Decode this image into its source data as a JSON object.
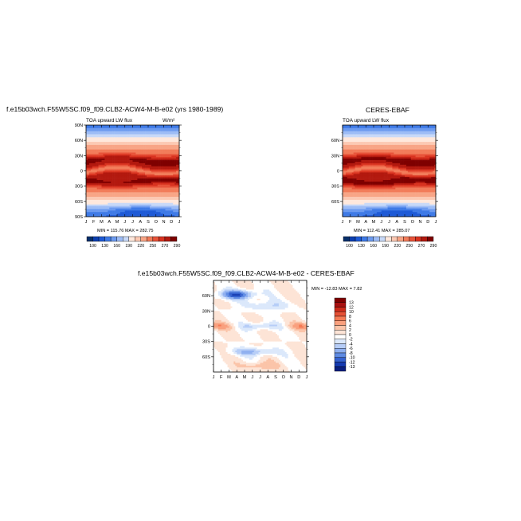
{
  "figure": {
    "case_title": "f.e15b03wch.F55W5SC.f09_f09.CLB2-ACW4-M-B-e02 (yrs 1980-1989)",
    "obs_title": "CERES-EBAF",
    "diff_title": "f.e15b03wch.F55W5SC.f09_f09.CLB2-ACW4-M-B-e02 - CERES-EBAF"
  },
  "chart_data": [
    {
      "type": "heatmap",
      "name": "model",
      "title": "TOA upward LW flux",
      "units": "W/m²",
      "stats": "MIN = 115.76  MAX = 282.75",
      "x_ticks": [
        "J",
        "F",
        "M",
        "A",
        "M",
        "J",
        "J",
        "A",
        "S",
        "O",
        "N",
        "D",
        "J"
      ],
      "y_ticks": [
        "90N",
        "60N",
        "30N",
        "0",
        "30S",
        "60S",
        "90S"
      ],
      "ylim": [
        -90,
        90
      ],
      "colorbar_labels": [
        "100",
        "130",
        "160",
        "190",
        "220",
        "250",
        "270",
        "290"
      ]
    },
    {
      "type": "heatmap",
      "name": "obs",
      "title": "TOA upward LW flux",
      "units": "",
      "stats": "MIN = 112.41  MAX = 285.07",
      "x_ticks": [
        "J",
        "F",
        "M",
        "A",
        "M",
        "J",
        "J",
        "A",
        "S",
        "O",
        "N",
        "D",
        "J"
      ],
      "y_ticks": [
        "60N",
        "30N",
        "0",
        "30S",
        "60S"
      ],
      "ylim": [
        -90,
        90
      ],
      "colorbar_labels": [
        "100",
        "130",
        "160",
        "190",
        "220",
        "250",
        "270",
        "290"
      ]
    },
    {
      "type": "heatmap",
      "name": "difference",
      "title": "",
      "stats": "MIN = -12.83  MAX =    7.82",
      "x_ticks": [
        "J",
        "F",
        "M",
        "A",
        "M",
        "J",
        "J",
        "A",
        "S",
        "O",
        "N",
        "D",
        "J"
      ],
      "y_ticks": [
        "60N",
        "30N",
        "0",
        "30S",
        "60S"
      ],
      "ylim": [
        -90,
        90
      ],
      "colorbar_labels": [
        "13",
        "12",
        "10",
        "8",
        "6",
        "4",
        "2",
        "0",
        "-2",
        "-4",
        "-6",
        "-8",
        "-10",
        "-12",
        "-13"
      ]
    }
  ],
  "palettes": {
    "abs": [
      "#08306b",
      "#0c3fb0",
      "#1e5ad6",
      "#3f7ae6",
      "#6d9bf0",
      "#9dbcf6",
      "#c8d9f8",
      "#ffe8dc",
      "#fcc9b3",
      "#f8a586",
      "#f27c5a",
      "#e8543a",
      "#d93320",
      "#b3190f",
      "#7f0000"
    ],
    "diff": [
      "#7f0000",
      "#a81010",
      "#cc2a1a",
      "#e65035",
      "#f57a55",
      "#f9a07e",
      "#fbc4a9",
      "#fde4d6",
      "#ffffff",
      "#dbe8fb",
      "#b6cdf7",
      "#8fb0f0",
      "#5f8be3",
      "#3562d0",
      "#153ab0",
      "#0a1f80"
    ]
  }
}
